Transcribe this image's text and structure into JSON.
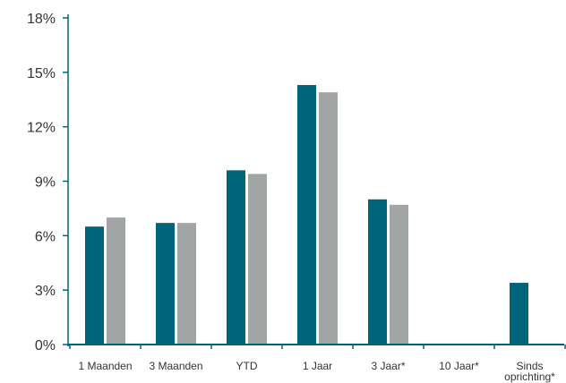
{
  "chart_data": {
    "type": "bar",
    "categories": [
      "1 Maanden",
      "3 Maanden",
      "YTD",
      "1 Jaar",
      "3 Jaar*",
      "10 Jaar*",
      "Sinds oprichting*"
    ],
    "series": [
      {
        "values": [
          6.5,
          6.7,
          9.6,
          14.3,
          8.0,
          null,
          3.4
        ],
        "color": "#00647a"
      },
      {
        "values": [
          7.0,
          6.7,
          9.4,
          13.9,
          7.7,
          null,
          null
        ],
        "color": "#a2a5a6"
      }
    ],
    "ylim": [
      0,
      18
    ],
    "yticks": [
      0,
      3,
      6,
      9,
      12,
      15,
      18
    ],
    "ytick_labels": [
      "0%",
      "3%",
      "6%",
      "9%",
      "12%",
      "15%",
      "18%"
    ],
    "title": "",
    "xlabel": "",
    "ylabel": "",
    "grid": false,
    "axis_color": "#00647a"
  }
}
